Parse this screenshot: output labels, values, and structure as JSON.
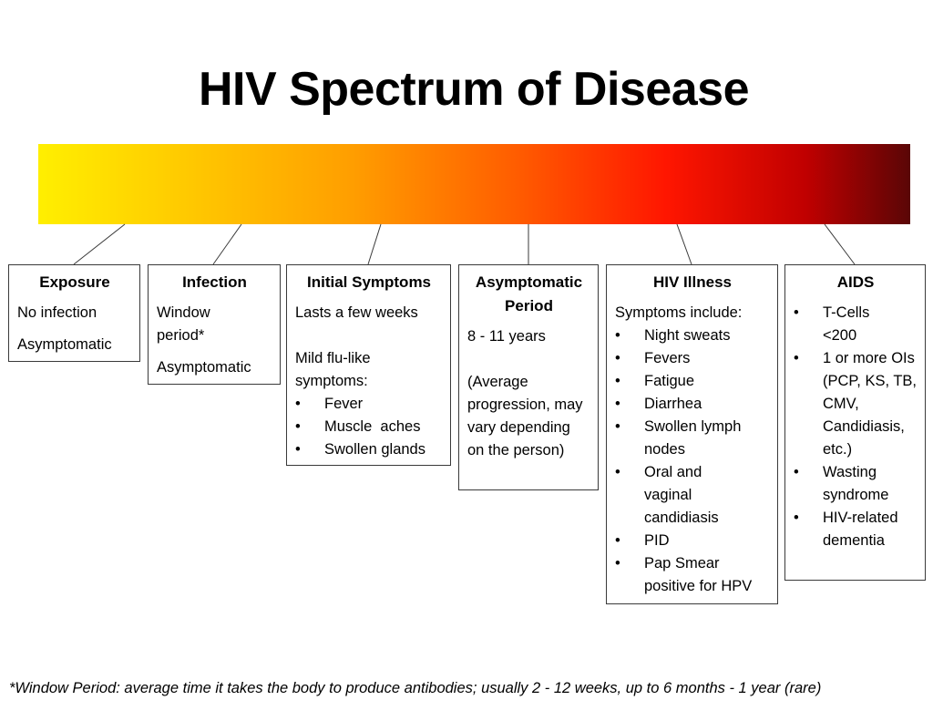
{
  "title": "HIV Spectrum of Disease",
  "colors": {
    "gradient": [
      "#ffef00",
      "#ff9e00",
      "#ff1600",
      "#5a0606"
    ],
    "border": "#3a3a3a"
  },
  "stages": [
    {
      "title": "Exposure",
      "lines": [
        "No infection",
        "Asymptomatic"
      ]
    },
    {
      "title": "Infection",
      "lines": [
        "Window period*",
        "Asymptomatic"
      ]
    },
    {
      "title": "Initial Symptoms",
      "intro": "Lasts a few weeks",
      "list_intro": "Mild flu-like symptoms:",
      "bullets": [
        "Fever",
        "Muscle  aches",
        "Swollen glands"
      ]
    },
    {
      "title": "Asymptomatic Period",
      "lines": [
        "8 - 11 years"
      ],
      "note": "(Average progression, may vary depending on the person)"
    },
    {
      "title": "HIV Illness",
      "list_intro": "Symptoms include:",
      "bullets": [
        "Night sweats",
        "Fevers",
        "Fatigue",
        "Diarrhea",
        "Swollen lymph nodes",
        "Oral and vaginal candidiasis",
        "PID",
        "Pap Smear positive for HPV"
      ]
    },
    {
      "title": "AIDS",
      "bullets": [
        "T-Cells <200",
        "1 or more OIs (PCP, KS, TB, CMV, Candidiasis, etc.)",
        "Wasting syndrome",
        "HIV-related dementia"
      ]
    }
  ],
  "footnote": "*Window Period: average time it takes the body to produce antibodies; usually 2 - 12 weeks, up to 6 months - 1 year (rare)"
}
